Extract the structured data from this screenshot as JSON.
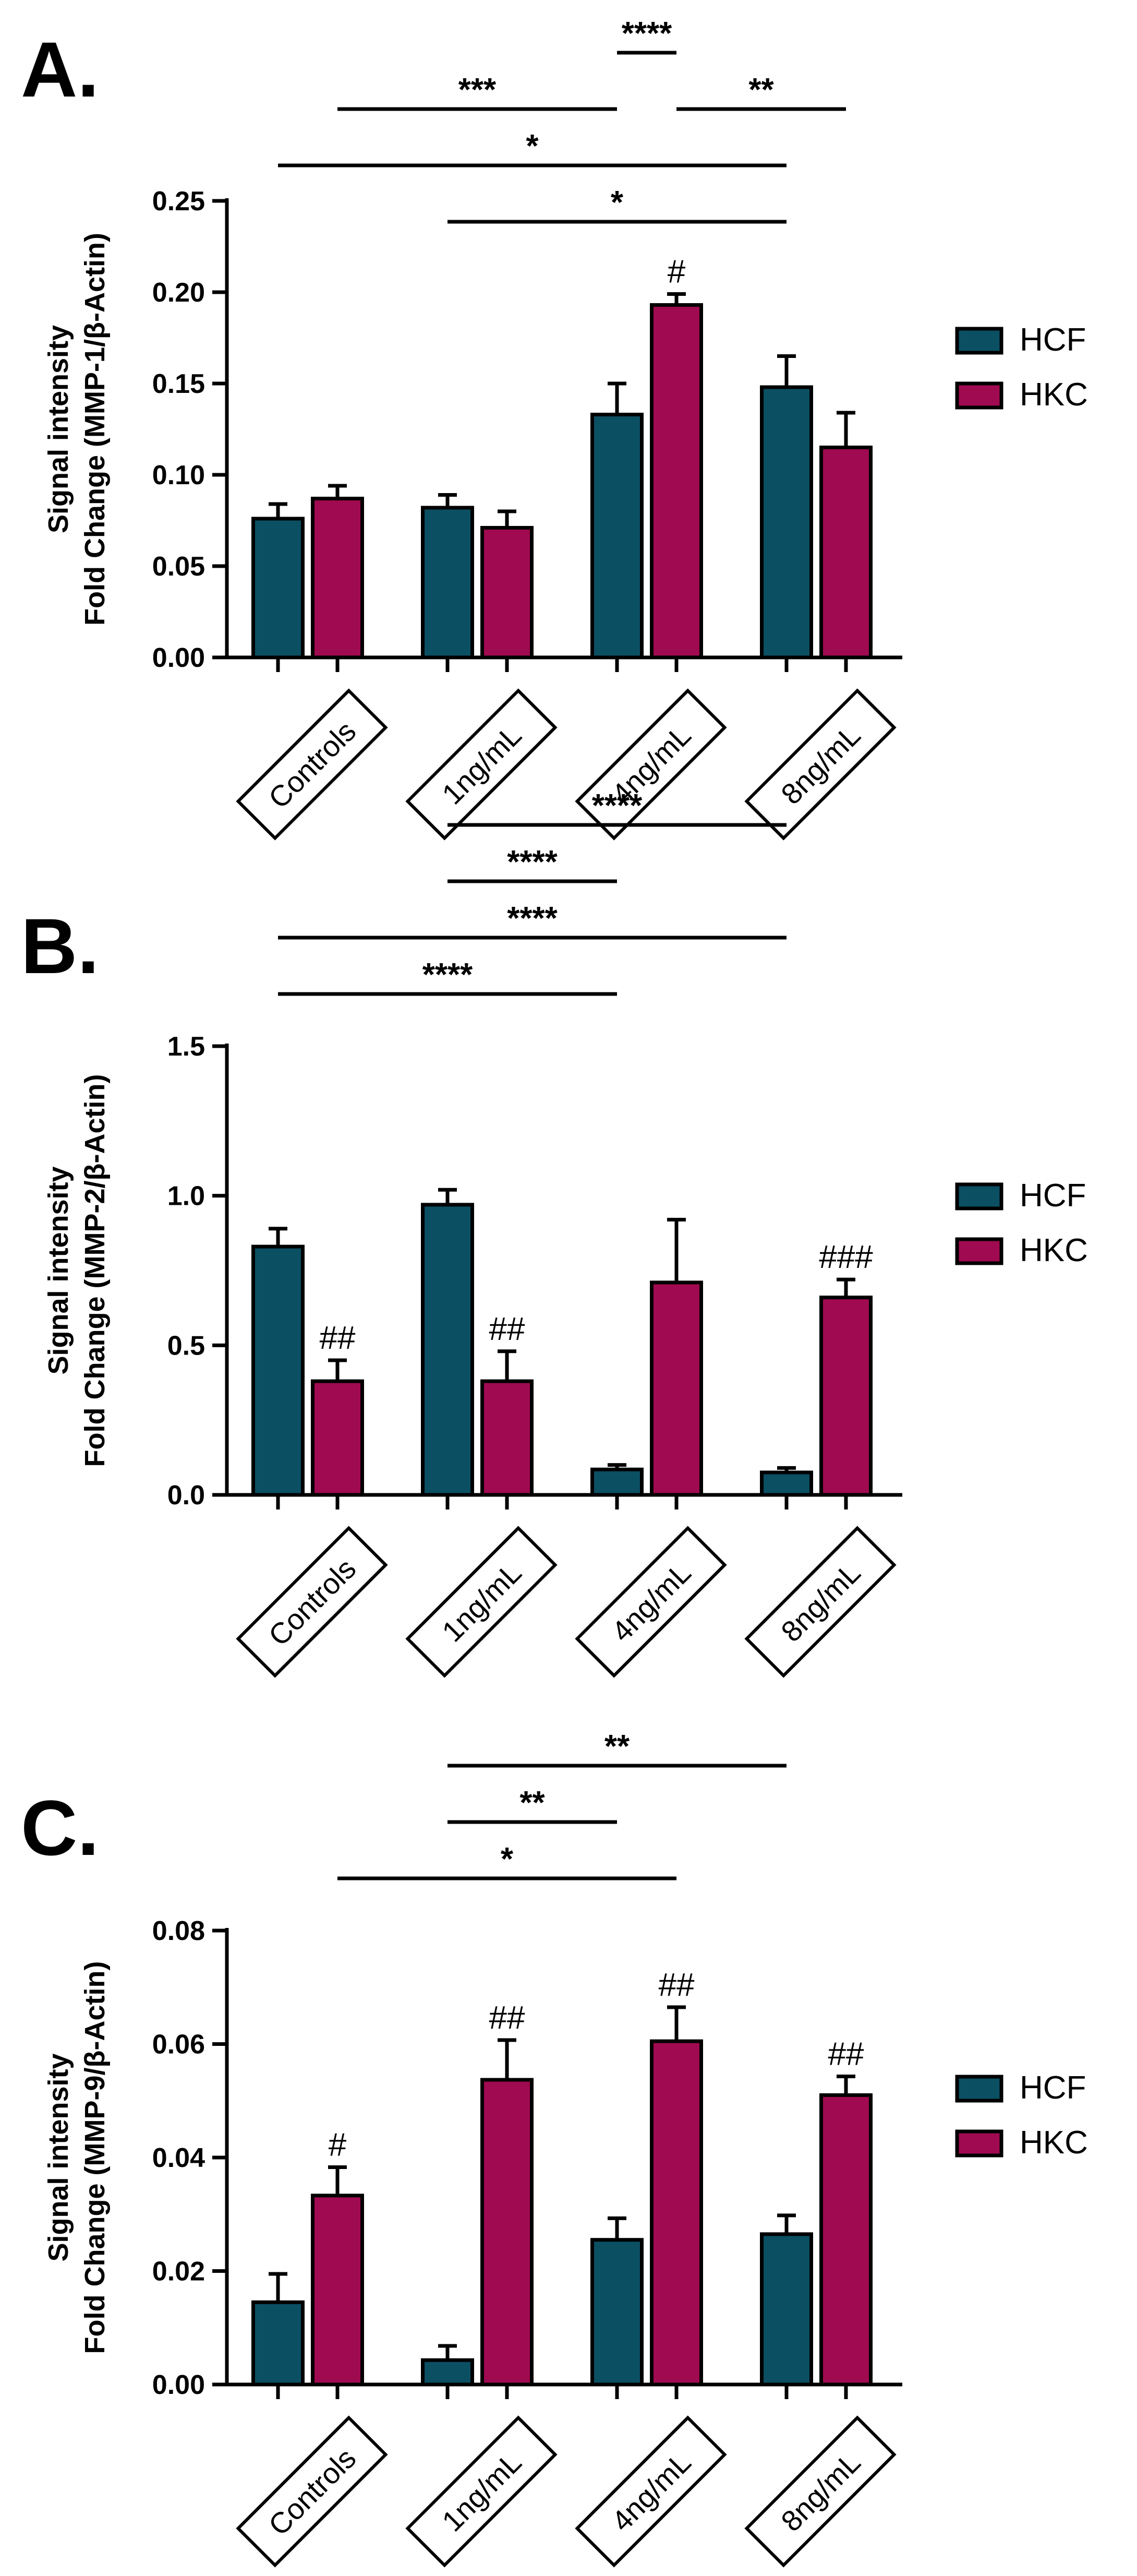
{
  "colors": {
    "hcf": "#0b4f63",
    "hkc": "#a00a50",
    "stroke": "#000000"
  },
  "legend": [
    "HCF",
    "HKC"
  ],
  "chart_data": [
    {
      "type": "bar",
      "panel_label": "A.",
      "ylabel_line1": "Signal intensity",
      "ylabel_line2": "Fold Change (MMP-1/β-Actin)",
      "ylim": [
        0,
        0.25
      ],
      "yticks": [
        "0.00",
        "0.05",
        "0.10",
        "0.15",
        "0.20",
        "0.25"
      ],
      "categories": [
        "Controls",
        "1ng/mL",
        "4ng/mL",
        "8ng/mL"
      ],
      "series": [
        {
          "name": "HCF",
          "values": [
            0.076,
            0.082,
            0.133,
            0.148
          ],
          "errors": [
            0.008,
            0.007,
            0.017,
            0.017
          ]
        },
        {
          "name": "HKC",
          "values": [
            0.087,
            0.071,
            0.193,
            0.115
          ],
          "errors": [
            0.007,
            0.009,
            0.006,
            0.019
          ]
        }
      ],
      "annotations": [
        {
          "series": 1,
          "category": 2,
          "text": "#"
        }
      ],
      "significance": [
        {
          "text": "****",
          "from": [
            2,
            0
          ],
          "to": [
            2,
            1
          ]
        },
        {
          "text": "***",
          "from": [
            0,
            1
          ],
          "to": [
            2,
            0
          ]
        },
        {
          "text": "**",
          "from": [
            2,
            1
          ],
          "to": [
            3,
            1
          ]
        },
        {
          "text": "*",
          "from": [
            0,
            0
          ],
          "to": [
            3,
            0
          ]
        },
        {
          "text": "*",
          "from": [
            1,
            0
          ],
          "to": [
            3,
            0
          ]
        }
      ]
    },
    {
      "type": "bar",
      "panel_label": "B.",
      "ylabel_line1": "Signal intensity",
      "ylabel_line2": "Fold Change (MMP-2/β-Actin)",
      "ylim": [
        0,
        1.5
      ],
      "yticks": [
        "0.0",
        "0.5",
        "1.0",
        "1.5"
      ],
      "categories": [
        "Controls",
        "1ng/mL",
        "4ng/mL",
        "8ng/mL"
      ],
      "series": [
        {
          "name": "HCF",
          "values": [
            0.83,
            0.97,
            0.085,
            0.075
          ],
          "errors": [
            0.06,
            0.05,
            0.015,
            0.015
          ]
        },
        {
          "name": "HKC",
          "values": [
            0.38,
            0.38,
            0.71,
            0.66
          ],
          "errors": [
            0.07,
            0.1,
            0.21,
            0.06
          ]
        }
      ],
      "annotations": [
        {
          "series": 1,
          "category": 0,
          "text": "##"
        },
        {
          "series": 1,
          "category": 1,
          "text": "##"
        },
        {
          "series": 1,
          "category": 3,
          "text": "###"
        }
      ],
      "significance": [
        {
          "text": "****",
          "from": [
            1,
            0
          ],
          "to": [
            3,
            0
          ]
        },
        {
          "text": "****",
          "from": [
            1,
            0
          ],
          "to": [
            2,
            0
          ]
        },
        {
          "text": "****",
          "from": [
            0,
            0
          ],
          "to": [
            3,
            0
          ]
        },
        {
          "text": "****",
          "from": [
            0,
            0
          ],
          "to": [
            2,
            0
          ]
        }
      ]
    },
    {
      "type": "bar",
      "panel_label": "C.",
      "ylabel_line1": "Signal intensity",
      "ylabel_line2": "Fold Change (MMP-9/β-Actin)",
      "ylim": [
        0,
        0.08
      ],
      "yticks": [
        "0.00",
        "0.02",
        "0.04",
        "0.06",
        "0.08"
      ],
      "categories": [
        "Controls",
        "1ng/mL",
        "4ng/mL",
        "8ng/mL"
      ],
      "series": [
        {
          "name": "HCF",
          "values": [
            0.0145,
            0.0043,
            0.0255,
            0.0265
          ],
          "errors": [
            0.005,
            0.0025,
            0.0038,
            0.0033
          ]
        },
        {
          "name": "HKC",
          "values": [
            0.0333,
            0.0537,
            0.0605,
            0.051
          ],
          "errors": [
            0.005,
            0.007,
            0.006,
            0.0033
          ]
        }
      ],
      "annotations": [
        {
          "series": 1,
          "category": 0,
          "text": "#"
        },
        {
          "series": 1,
          "category": 1,
          "text": "##"
        },
        {
          "series": 1,
          "category": 2,
          "text": "##"
        },
        {
          "series": 1,
          "category": 3,
          "text": "##"
        }
      ],
      "significance": [
        {
          "text": "**",
          "from": [
            1,
            0
          ],
          "to": [
            3,
            0
          ]
        },
        {
          "text": "**",
          "from": [
            1,
            0
          ],
          "to": [
            2,
            0
          ]
        },
        {
          "text": "*",
          "from": [
            0,
            1
          ],
          "to": [
            2,
            1
          ]
        }
      ]
    }
  ]
}
